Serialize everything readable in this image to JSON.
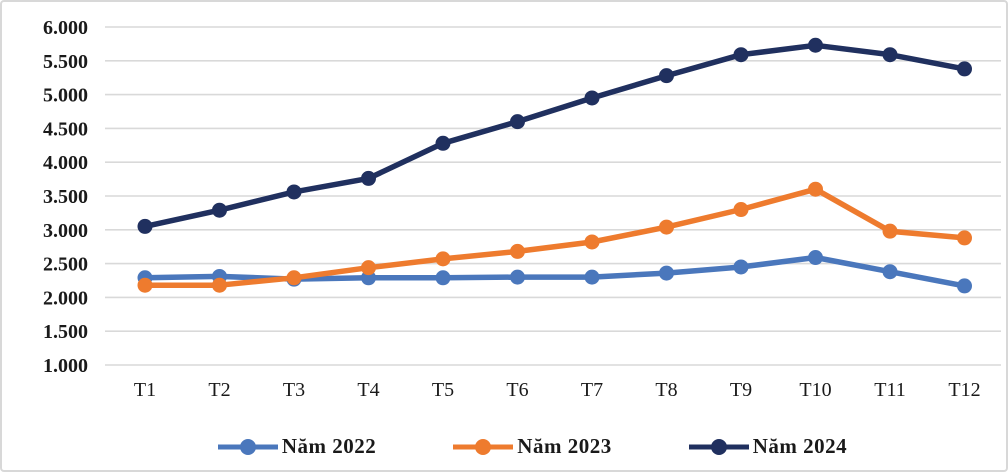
{
  "chart_data": {
    "type": "line",
    "categories": [
      "T1",
      "T2",
      "T3",
      "T4",
      "T5",
      "T6",
      "T7",
      "T8",
      "T9",
      "T10",
      "T11",
      "T12"
    ],
    "series": [
      {
        "name": "Năm 2022",
        "color": "#4A77BC",
        "values": [
          2290,
          2310,
          2270,
          2290,
          2290,
          2300,
          2300,
          2360,
          2450,
          2590,
          2380,
          2170
        ]
      },
      {
        "name": "Năm 2023",
        "color": "#EE7B2E",
        "values": [
          2180,
          2180,
          2290,
          2440,
          2570,
          2680,
          2820,
          3040,
          3300,
          3600,
          2980,
          2880
        ]
      },
      {
        "name": "Năm 2024",
        "color": "#20305F",
        "values": [
          3050,
          3290,
          3560,
          3760,
          4280,
          4600,
          4950,
          5280,
          5590,
          5730,
          5590,
          5380
        ]
      }
    ],
    "y_axis": {
      "min": 1000,
      "max": 6000,
      "step": 500,
      "tick_labels": [
        "6.000",
        "5.500",
        "5.000",
        "4.500",
        "4.000",
        "3.500",
        "3.000",
        "2.500",
        "2.000",
        "1.500",
        "1.000"
      ]
    },
    "grid": "horizontal",
    "gridline_color": "#d9d9d9",
    "legend_position": "bottom",
    "ylim": [
      1000,
      6000
    ],
    "xlabel": "",
    "ylabel": "",
    "title": ""
  }
}
